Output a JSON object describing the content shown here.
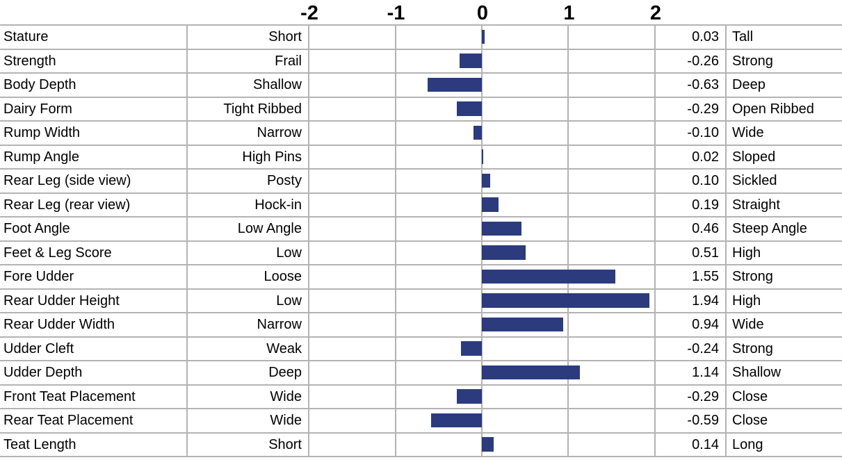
{
  "chart_data": {
    "type": "bar",
    "orientation": "horizontal",
    "title": "",
    "xlabel": "",
    "ylabel": "",
    "xlim": [
      -2,
      2
    ],
    "axis_ticks": [
      "-2",
      "-1",
      "0",
      "1",
      "2"
    ],
    "grid": true,
    "bar_color": "#2b3b7d",
    "grid_color": "#b3b3b3",
    "columns": [
      "trait",
      "low_label",
      "bar",
      "value",
      "high_label"
    ],
    "rows": [
      {
        "trait": "Stature",
        "low": "Short",
        "value": 0.03,
        "high": "Tall"
      },
      {
        "trait": "Strength",
        "low": "Frail",
        "value": -0.26,
        "high": "Strong"
      },
      {
        "trait": "Body Depth",
        "low": "Shallow",
        "value": -0.63,
        "high": "Deep"
      },
      {
        "trait": "Dairy Form",
        "low": "Tight Ribbed",
        "value": -0.29,
        "high": "Open Ribbed"
      },
      {
        "trait": "Rump Width",
        "low": "Narrow",
        "value": -0.1,
        "high": "Wide"
      },
      {
        "trait": "Rump Angle",
        "low": "High Pins",
        "value": 0.02,
        "high": "Sloped"
      },
      {
        "trait": "Rear Leg (side view)",
        "low": "Posty",
        "value": 0.1,
        "high": "Sickled"
      },
      {
        "trait": "Rear Leg (rear view)",
        "low": "Hock-in",
        "value": 0.19,
        "high": "Straight"
      },
      {
        "trait": "Foot Angle",
        "low": "Low Angle",
        "value": 0.46,
        "high": "Steep Angle"
      },
      {
        "trait": "Feet & Leg Score",
        "low": "Low",
        "value": 0.51,
        "high": "High"
      },
      {
        "trait": "Fore Udder",
        "low": "Loose",
        "value": 1.55,
        "high": "Strong"
      },
      {
        "trait": "Rear Udder Height",
        "low": "Low",
        "value": 1.94,
        "high": "High"
      },
      {
        "trait": "Rear Udder Width",
        "low": "Narrow",
        "value": 0.94,
        "high": "Wide"
      },
      {
        "trait": "Udder Cleft",
        "low": "Weak",
        "value": -0.24,
        "high": "Strong"
      },
      {
        "trait": "Udder Depth",
        "low": "Deep",
        "value": 1.14,
        "high": "Shallow"
      },
      {
        "trait": "Front Teat Placement",
        "low": "Wide",
        "value": -0.29,
        "high": "Close"
      },
      {
        "trait": "Rear Teat Placement",
        "low": "Wide",
        "value": -0.59,
        "high": "Close"
      },
      {
        "trait": "Teat Length",
        "low": "Short",
        "value": 0.14,
        "high": "Long"
      }
    ]
  }
}
